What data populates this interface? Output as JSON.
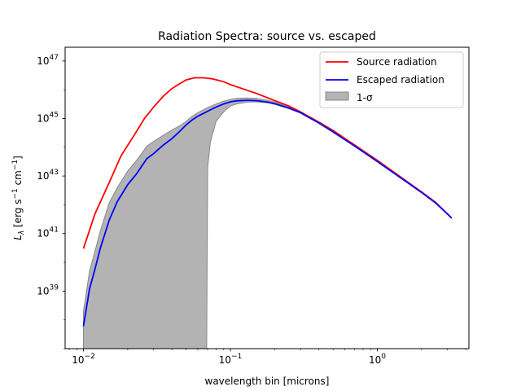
{
  "chart_data": {
    "type": "line",
    "title": "Radiation Spectra: source vs. escaped",
    "xlabel": "wavelength bin [microns]",
    "ylabel": "L_λ [erg s^-1 cm^-1]",
    "xscale": "log",
    "yscale": "log",
    "xlim": [
      0.0075,
      4.2
    ],
    "ylim": [
      1e+37,
      3e+47
    ],
    "x_ticks": [
      {
        "value": 0.01,
        "base": "10",
        "exp": "−2"
      },
      {
        "value": 0.1,
        "base": "10",
        "exp": "−1"
      },
      {
        "value": 1,
        "base": "10",
        "exp": "0"
      }
    ],
    "y_ticks": [
      {
        "value": 1e+39,
        "base": "10",
        "exp": "39"
      },
      {
        "value": 1e+41,
        "base": "10",
        "exp": "41"
      },
      {
        "value": 1e+43,
        "base": "10",
        "exp": "43"
      },
      {
        "value": 1e+45,
        "base": "10",
        "exp": "45"
      },
      {
        "value": 1e+47,
        "base": "10",
        "exp": "47"
      }
    ],
    "grid": false,
    "legend_position": "top-right",
    "series": [
      {
        "name": "Source radiation",
        "color": "#ff0000",
        "x": [
          0.01,
          0.012,
          0.015,
          0.018,
          0.022,
          0.026,
          0.03,
          0.035,
          0.04,
          0.045,
          0.05,
          0.057,
          0.065,
          0.075,
          0.09,
          0.1,
          0.12,
          0.15,
          0.2,
          0.25,
          0.3,
          0.4,
          0.5,
          0.7,
          1.0,
          1.5,
          2.0,
          2.5,
          3.2
        ],
        "y": [
          3e+40,
          5e+41,
          6e+42,
          5e+43,
          2.5e+44,
          1e+45,
          2.5e+45,
          6e+45,
          1.1e+46,
          1.6e+46,
          2.2e+46,
          2.6e+46,
          2.6e+46,
          2.4e+46,
          1.9e+46,
          1.5e+46,
          1.1e+46,
          7.5e+45,
          4.2e+45,
          2.7e+45,
          1.7e+45,
          7.5e+44,
          3.8e+44,
          1.2e+44,
          3.5e+43,
          8e+42,
          2.8e+42,
          1.2e+42,
          3.5e+41
        ]
      },
      {
        "name": "Escaped radiation",
        "color": "#0000ff",
        "x": [
          0.01,
          0.011,
          0.012,
          0.013,
          0.015,
          0.017,
          0.02,
          0.023,
          0.027,
          0.03,
          0.035,
          0.04,
          0.045,
          0.05,
          0.055,
          0.06,
          0.07,
          0.08,
          0.09,
          0.1,
          0.11,
          0.13,
          0.15,
          0.18,
          0.2,
          0.25,
          0.3,
          0.4,
          0.5,
          0.7,
          1.0,
          1.5,
          2.0,
          2.5,
          3.2
        ],
        "y": [
          6e+37,
          1.2e+39,
          6e+39,
          3e+40,
          3e+41,
          1.3e+42,
          5e+42,
          1.2e+43,
          4e+43,
          6e+43,
          1.2e+44,
          2e+44,
          3.5e+44,
          6e+44,
          9e+44,
          1.2e+45,
          1.8e+45,
          2.5e+45,
          3.2e+45,
          3.8e+45,
          4.1e+45,
          4.3e+45,
          4.2e+45,
          3.7e+45,
          3.3e+45,
          2.3e+45,
          1.6e+45,
          7e+44,
          3.4e+44,
          1.1e+44,
          3.2e+43,
          7.5e+42,
          2.7e+42,
          1.15e+42,
          3.5e+41
        ]
      }
    ],
    "band": {
      "name": "1-σ",
      "fill": "#b3b3b3",
      "edge": "#888888",
      "x_upper": [
        0.01,
        0.011,
        0.012,
        0.013,
        0.015,
        0.017,
        0.02,
        0.023,
        0.027,
        0.03,
        0.035,
        0.04,
        0.045,
        0.05,
        0.055,
        0.06,
        0.07,
        0.08,
        0.09,
        0.1,
        0.11,
        0.13,
        0.15,
        0.18,
        0.2,
        0.25,
        0.3,
        0.4,
        0.5,
        0.7,
        1.0,
        1.5,
        2.0,
        2.5,
        3.2
      ],
      "y_upper": [
        2e+38,
        5e+39,
        2.5e+40,
        1.2e+41,
        1.2e+42,
        4e+42,
        1.5e+43,
        3.5e+43,
        1.1e+44,
        1.6e+44,
        2.6e+44,
        4e+44,
        5.5e+44,
        8e+44,
        1.2e+45,
        1.6e+45,
        2.4e+45,
        3.2e+45,
        4e+45,
        4.6e+45,
        5e+45,
        5.2e+45,
        5e+45,
        4.3e+45,
        3.7e+45,
        2.5e+45,
        1.7e+45,
        7.3e+44,
        3.5e+44,
        1.12e+44,
        3.25e+43,
        7.6e+42,
        2.75e+42,
        1.17e+42,
        3.6e+41
      ],
      "x_lower": [
        0.01,
        0.069,
        0.07,
        0.073,
        0.08,
        0.09,
        0.1,
        0.11,
        0.13,
        0.15,
        0.18,
        0.2,
        0.25,
        0.3,
        0.4,
        0.5,
        0.7,
        1.0,
        1.5,
        2.0,
        2.5,
        3.2
      ],
      "y_lower": [
        1e+37,
        1e+37,
        2e+43,
        1.5e+44,
        8e+44,
        1.7e+45,
        2.7e+45,
        3.2e+45,
        3.7e+45,
        3.8e+45,
        3.5e+45,
        3.1e+45,
        2.2e+45,
        1.55e+45,
        6.8e+44,
        3.3e+44,
        1.08e+44,
        3.15e+43,
        7.4e+42,
        2.65e+42,
        1.13e+42,
        3.4e+41
      ]
    }
  }
}
